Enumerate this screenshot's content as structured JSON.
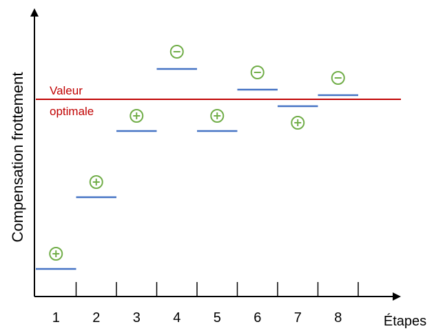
{
  "y_axis_label": "Compensation frottement",
  "x_axis_label": "Étapes",
  "reference": {
    "label_line1": "Valeur",
    "label_line2": "optimale",
    "level": 7.15,
    "color": "#c00000"
  },
  "colors": {
    "step_line": "#4472c4",
    "sign_marker": "#70ad47",
    "axis": "#000000"
  },
  "chart_data": {
    "type": "step-adjustments",
    "x_ticks": [
      "1",
      "2",
      "3",
      "4",
      "5",
      "6",
      "7",
      "8"
    ],
    "steps": [
      {
        "step": "1",
        "level": 1.0,
        "sign": "+"
      },
      {
        "step": "2",
        "level": 3.6,
        "sign": "+"
      },
      {
        "step": "3",
        "level": 6.0,
        "sign": "+"
      },
      {
        "step": "4",
        "level": 8.25,
        "sign": "-"
      },
      {
        "step": "5",
        "level": 6.0,
        "sign": "+"
      },
      {
        "step": "6",
        "level": 7.5,
        "sign": "-"
      },
      {
        "step": "7",
        "level": 6.9,
        "sign": "+"
      },
      {
        "step": "8",
        "level": 7.3,
        "sign": "-"
      }
    ],
    "reference_level": 7.15,
    "y_range": [
      0,
      10
    ]
  }
}
